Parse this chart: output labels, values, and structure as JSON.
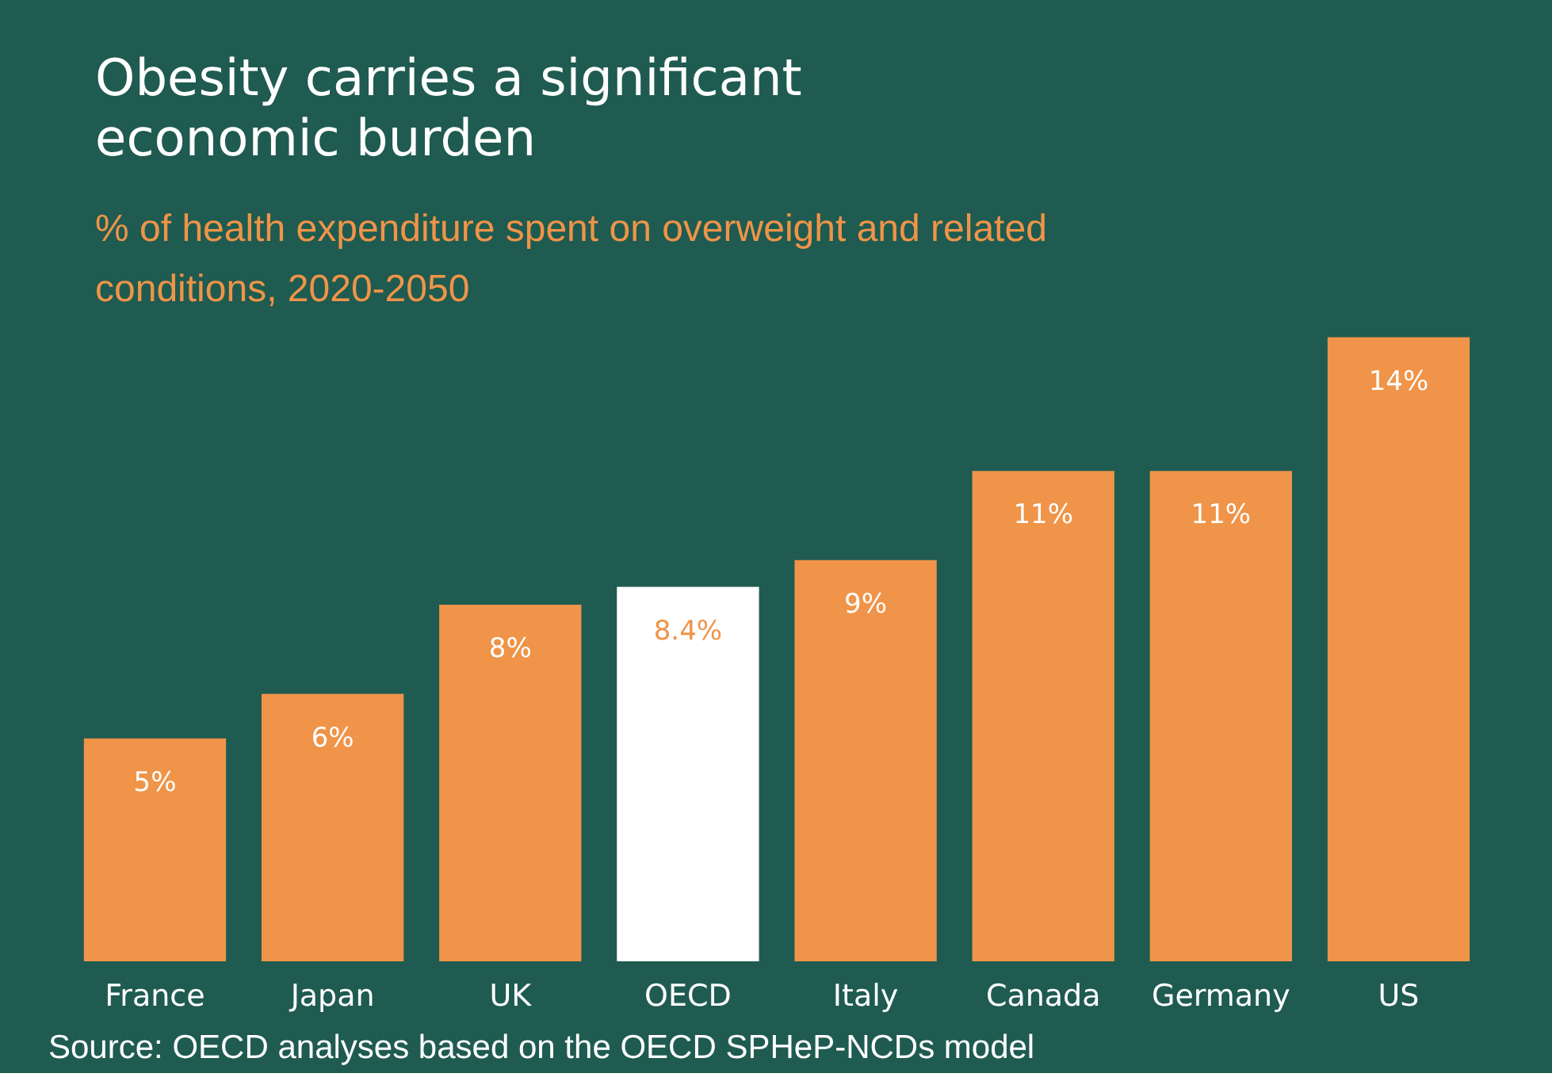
{
  "chart_data": {
    "type": "bar",
    "title": "Obesity carries a significant economic burden",
    "subtitle": "% of health expenditure spent on overweight and related conditions, 2020-2050",
    "categories": [
      "France",
      "Japan",
      "UK",
      "OECD",
      "Italy",
      "Canada",
      "Germany",
      "US"
    ],
    "values": [
      5,
      6,
      8,
      8.4,
      9,
      11,
      11,
      14
    ],
    "value_labels": [
      "5%",
      "6%",
      "8%",
      "8.4%",
      "9%",
      "11%",
      "11%",
      "14%"
    ],
    "colors": [
      "#ef9448",
      "#ef9448",
      "#ef9448",
      "#ffffff",
      "#ef9448",
      "#ef9448",
      "#ef9448",
      "#ef9448"
    ],
    "grid": false,
    "annotations": [
      "Source: OECD analyses based on the OECD SPHeP-NCDs model"
    ]
  }
}
